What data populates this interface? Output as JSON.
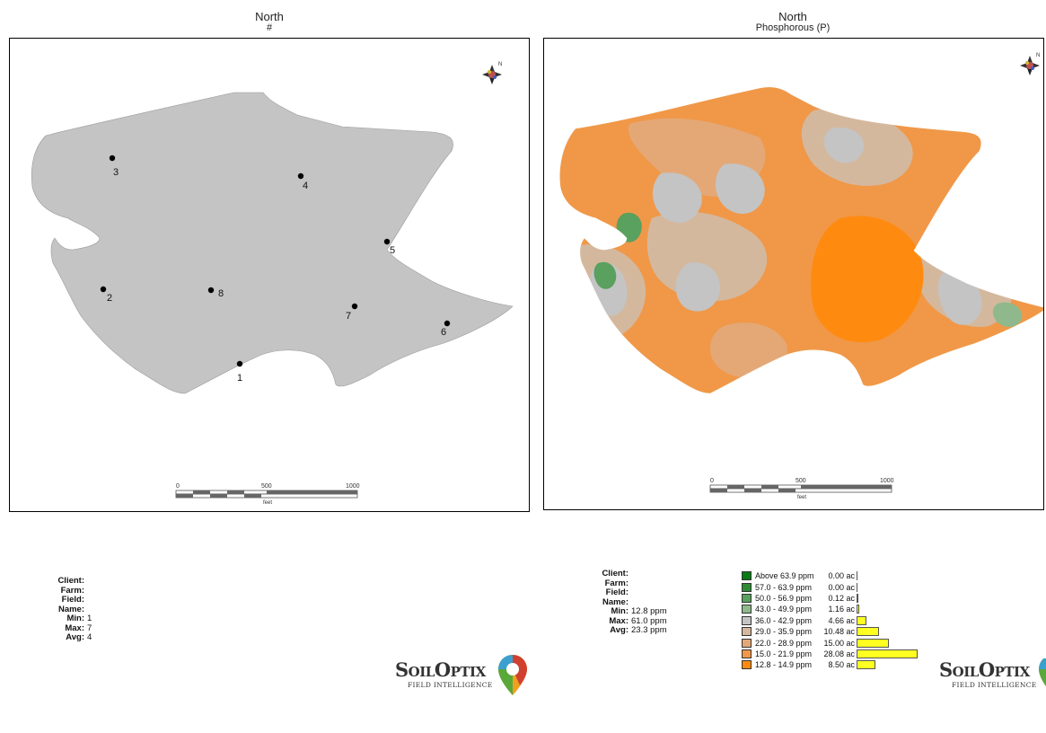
{
  "left_map": {
    "title": "North",
    "subtitle": "#",
    "points": [
      {
        "label": "1"
      },
      {
        "label": "2"
      },
      {
        "label": "3"
      },
      {
        "label": "4"
      },
      {
        "label": "5"
      },
      {
        "label": "6"
      },
      {
        "label": "7"
      },
      {
        "label": "8"
      }
    ],
    "scale": {
      "ticks": [
        "0",
        "500",
        "1000"
      ],
      "unit": "feet"
    },
    "field_color": "#c4c4c4"
  },
  "right_map": {
    "title": "North",
    "subtitle": "Phosphorous (P)",
    "scale": {
      "ticks": [
        "0",
        "500",
        "1000"
      ],
      "unit": "feet"
    }
  },
  "left_info": {
    "fields": [
      {
        "key": "Client:",
        "value": ""
      },
      {
        "key": "Farm:",
        "value": ""
      },
      {
        "key": "Field:",
        "value": ""
      },
      {
        "key": "Name:",
        "value": ""
      },
      {
        "key": "Min:",
        "value": "1"
      },
      {
        "key": "Max:",
        "value": "7"
      },
      {
        "key": "Avg:",
        "value": "4"
      }
    ]
  },
  "right_info": {
    "fields": [
      {
        "key": "Client:",
        "value": ""
      },
      {
        "key": "Farm:",
        "value": ""
      },
      {
        "key": "Field:",
        "value": ""
      },
      {
        "key": "Name:",
        "value": ""
      },
      {
        "key": "Min:",
        "value": "12.8 ppm"
      },
      {
        "key": "Max:",
        "value": "61.0 ppm"
      },
      {
        "key": "Avg:",
        "value": "23.3 ppm"
      }
    ]
  },
  "legend": {
    "items": [
      {
        "label": "Above 63.9 ppm",
        "area": "0.00 ac",
        "acres": 0.0,
        "color": "#0a7a14"
      },
      {
        "label": "57.0 - 63.9 ppm",
        "area": "0.00 ac",
        "acres": 0.0,
        "color": "#2e8b34"
      },
      {
        "label": "50.0 - 56.9 ppm",
        "area": "0.12 ac",
        "acres": 0.12,
        "color": "#5aa05e"
      },
      {
        "label": "43.0 - 49.9 ppm",
        "area": "1.16 ac",
        "acres": 1.16,
        "color": "#8fb98c"
      },
      {
        "label": "36.0 - 42.9 ppm",
        "area": "4.66 ac",
        "acres": 4.66,
        "color": "#c4c4c4"
      },
      {
        "label": "29.0 - 35.9 ppm",
        "area": "10.48 ac",
        "acres": 10.48,
        "color": "#d4b89e"
      },
      {
        "label": "22.0 - 28.9 ppm",
        "area": "15.00 ac",
        "acres": 15.0,
        "color": "#e4a877"
      },
      {
        "label": "15.0 - 21.9 ppm",
        "area": "28.08 ac",
        "acres": 28.08,
        "color": "#f09848"
      },
      {
        "label": "12.8 - 14.9 ppm",
        "area": "8.50 ac",
        "acres": 8.5,
        "color": "#ff8a10"
      }
    ],
    "bar_color": "#ffff22"
  },
  "logo": {
    "brand_soil_s": "S",
    "brand_soil_rest": "OIL",
    "brand_optix_o": "O",
    "brand_optix_rest": "PTIX",
    "tagline": "FIELD INTELLIGENCE"
  }
}
